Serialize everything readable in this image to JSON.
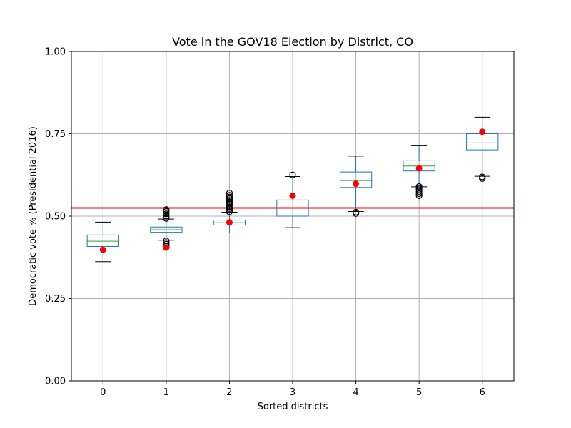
{
  "chart_data": {
    "type": "box",
    "title": "Vote in the GOV18 Election by District, CO",
    "xlabel": "Sorted districts",
    "ylabel": "Democratic vote % (Presidential 2016)",
    "categories": [
      "0",
      "1",
      "2",
      "3",
      "4",
      "5",
      "6"
    ],
    "ylim": [
      0.0,
      1.0
    ],
    "yticks": [
      0.0,
      0.25,
      0.5,
      0.75,
      1.0
    ],
    "ytick_labels": [
      "0.00",
      "0.25",
      "0.50",
      "0.75",
      "1.00"
    ],
    "grid": true,
    "reference_line": {
      "y": 0.525,
      "color": "#ff0000"
    },
    "boxes": [
      {
        "whisker_low": 0.362,
        "q1": 0.408,
        "median": 0.424,
        "q3": 0.443,
        "whisker_high": 0.482,
        "fliers": []
      },
      {
        "whisker_low": 0.427,
        "q1": 0.451,
        "median": 0.459,
        "q3": 0.467,
        "whisker_high": 0.491,
        "fliers": [
          0.405,
          0.41,
          0.415,
          0.42,
          0.425,
          0.493,
          0.5,
          0.507,
          0.514,
          0.52
        ]
      },
      {
        "whisker_low": 0.449,
        "q1": 0.473,
        "median": 0.48,
        "q3": 0.488,
        "whisker_high": 0.512,
        "fliers": [
          0.513,
          0.518,
          0.523,
          0.528,
          0.533,
          0.538,
          0.543,
          0.548,
          0.553,
          0.558,
          0.563,
          0.57
        ]
      },
      {
        "whisker_low": 0.465,
        "q1": 0.5,
        "median": 0.525,
        "q3": 0.549,
        "whisker_high": 0.62,
        "fliers": [
          0.625
        ]
      },
      {
        "whisker_low": 0.514,
        "q1": 0.587,
        "median": 0.608,
        "q3": 0.634,
        "whisker_high": 0.682,
        "fliers": [
          0.508,
          0.512
        ]
      },
      {
        "whisker_low": 0.589,
        "q1": 0.637,
        "median": 0.652,
        "q3": 0.668,
        "whisker_high": 0.715,
        "fliers": [
          0.562,
          0.568,
          0.574,
          0.58,
          0.585,
          0.59
        ]
      },
      {
        "whisker_low": 0.621,
        "q1": 0.701,
        "median": 0.722,
        "q3": 0.75,
        "whisker_high": 0.8,
        "fliers": [
          0.614,
          0.619
        ]
      }
    ],
    "enacted_points": [
      0.398,
      0.405,
      0.481,
      0.562,
      0.598,
      0.645,
      0.756
    ],
    "colors": {
      "box": "#1f77b4",
      "median": "#2ca02c",
      "whisker": "#000000",
      "point": "#ff0000",
      "grid": "#b0b0b0"
    }
  }
}
